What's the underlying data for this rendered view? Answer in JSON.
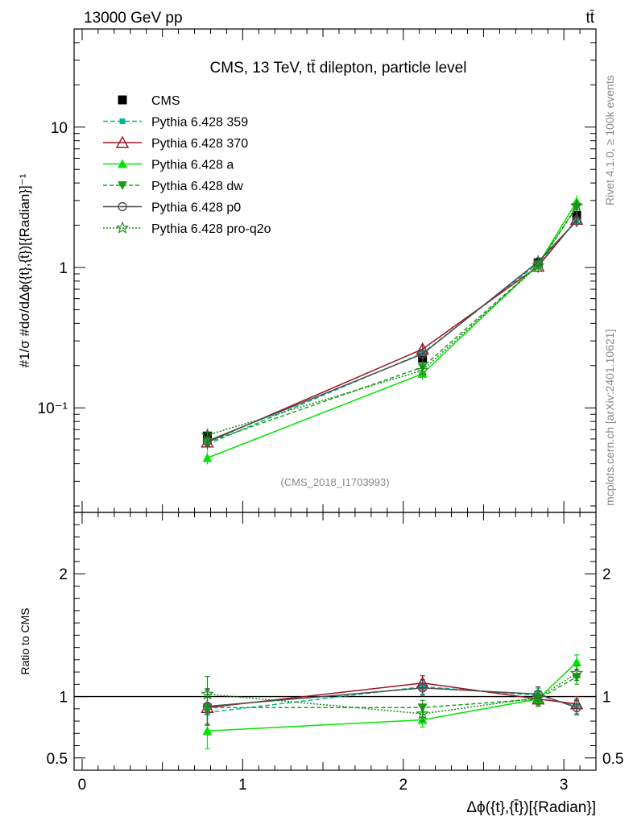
{
  "header": {
    "left": "13000 GeV pp",
    "right": "tt̄"
  },
  "side": {
    "rivet": "Rivet 4.1.0, ≥ 100k events",
    "mcplots": "mcplots.cern.ch [arXiv:2401.10621]"
  },
  "chart_data": [
    {
      "type": "line",
      "title": "CMS, 13 TeV, tt̄ dilepton, particle level",
      "watermark": "(CMS_2018_I1703993)",
      "ylabel": "#1/σ #dσ/dΔϕ({t},{t̄})[{Radian}]⁻¹",
      "yscale": "log",
      "ylim": [
        0.018,
        50
      ],
      "xlim": [
        -0.05,
        3.2
      ],
      "y_ticks": [
        {
          "v": 0.1,
          "label": "10⁻¹"
        },
        {
          "v": 1,
          "label": "1"
        },
        {
          "v": 10,
          "label": "10"
        }
      ],
      "x": [
        0.78,
        2.12,
        2.84,
        3.08
      ],
      "series": [
        {
          "name": "CMS",
          "color": "#000000",
          "marker": "square",
          "dash": "none",
          "values": [
            0.063,
            0.226,
            1.08,
            2.35
          ]
        },
        {
          "name": "Pythia 6.428 359",
          "color": "#00b896",
          "marker": "smallsquare",
          "dash": "6,3",
          "values": [
            0.055,
            0.245,
            1.07,
            2.15
          ]
        },
        {
          "name": "Pythia 6.428 370",
          "color": "#9b1421",
          "marker": "triangle-open",
          "dash": "none",
          "values": [
            0.057,
            0.262,
            1.02,
            2.2
          ]
        },
        {
          "name": "Pythia 6.428 a",
          "color": "#00e600",
          "marker": "triangle",
          "dash": "none",
          "values": [
            0.044,
            0.175,
            1.05,
            2.95
          ]
        },
        {
          "name": "Pythia 6.428 dw",
          "color": "#1a9e1a",
          "marker": "triangle-down",
          "dash": "5,3",
          "values": [
            0.057,
            0.195,
            1.04,
            2.7
          ]
        },
        {
          "name": "Pythia 6.428 p0",
          "color": "#4d4d4d",
          "marker": "circle-open",
          "dash": "none",
          "values": [
            0.058,
            0.242,
            1.1,
            2.15
          ]
        },
        {
          "name": "Pythia 6.428 pro-q2o",
          "color": "#178a17",
          "marker": "star",
          "dash": "2,2",
          "values": [
            0.064,
            0.185,
            1.03,
            2.75
          ]
        }
      ]
    },
    {
      "type": "line",
      "ylabel": "Ratio to CMS",
      "xlabel": "Δϕ({t},{t̄})[{Radian}]",
      "ylim": [
        0.4,
        2.5
      ],
      "y_ticks": [
        {
          "v": 0.5,
          "label": "0.5"
        },
        {
          "v": 1,
          "label": "1"
        },
        {
          "v": 2,
          "label": "2"
        }
      ],
      "x_ticks": [
        {
          "v": 0,
          "label": "0"
        },
        {
          "v": 1,
          "label": "1"
        },
        {
          "v": 2,
          "label": "2"
        },
        {
          "v": 3,
          "label": "3"
        }
      ],
      "reference": 1,
      "x": [
        0.78,
        2.12,
        2.84,
        3.08
      ],
      "series": [
        {
          "name": "Pythia 6.428 359",
          "values": [
            0.87,
            1.08,
            1.01,
            0.92
          ]
        },
        {
          "name": "Pythia 6.428 370",
          "values": [
            0.91,
            1.11,
            0.98,
            0.94
          ]
        },
        {
          "name": "Pythia 6.428 a",
          "values": [
            0.72,
            0.81,
            0.98,
            1.28
          ]
        },
        {
          "name": "Pythia 6.428 dw",
          "values": [
            0.91,
            0.91,
            0.98,
            1.16
          ]
        },
        {
          "name": "Pythia 6.428 p0",
          "values": [
            0.92,
            1.07,
            1.02,
            0.91
          ]
        },
        {
          "name": "Pythia 6.428 pro-q2o",
          "values": [
            1.02,
            0.86,
            0.99,
            1.19
          ]
        }
      ]
    }
  ]
}
